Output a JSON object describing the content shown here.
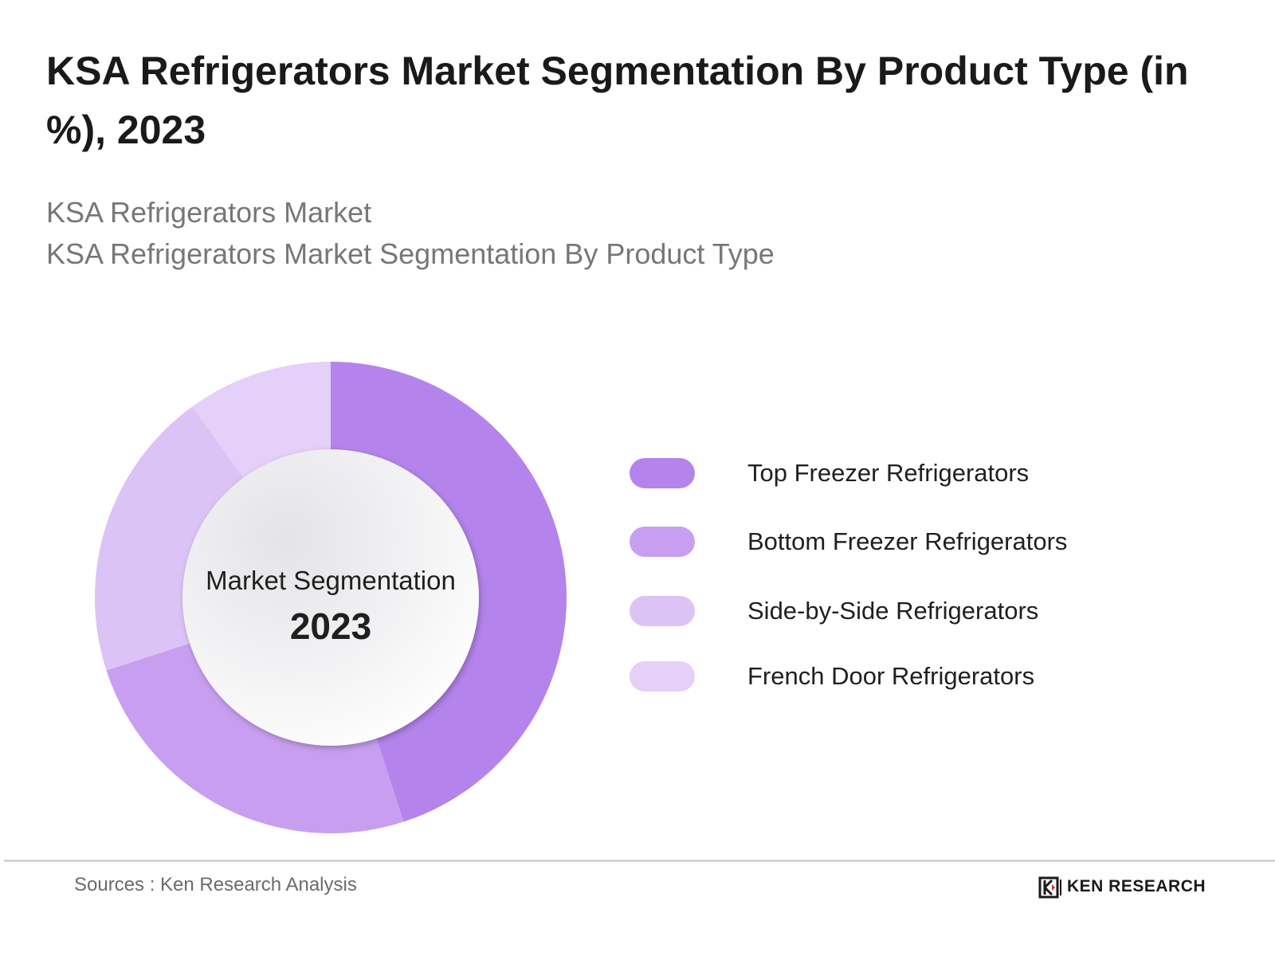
{
  "title": "KSA Refrigerators Market Segmentation By Product Type (in %), 2023",
  "subtitle_1": "KSA Refrigerators Market",
  "subtitle_2": "KSA Refrigerators Market Segmentation By Product Type",
  "center_label": "Market Segmentation",
  "center_year": "2023",
  "source": "Sources : Ken Research Analysis",
  "logo_text": "KEN RESEARCH",
  "chart_data": {
    "type": "pie",
    "variant": "donut",
    "categories": [
      "Top Freezer Refrigerators",
      "Bottom Freezer Refrigerators",
      "Side-by-Side Refrigerators",
      "French Door Refrigerators"
    ],
    "values": [
      45,
      25,
      20,
      10
    ],
    "colors": [
      "#b484ec",
      "#c89ff0",
      "#dcc3f6",
      "#e4d0f8"
    ],
    "legend_position": "right",
    "start_angle": "12 o'clock, clockwise"
  }
}
